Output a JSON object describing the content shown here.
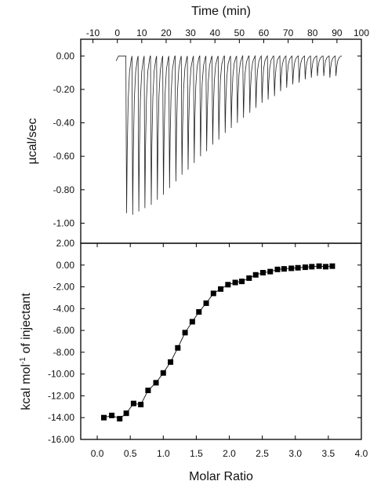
{
  "chart_data": [
    {
      "type": "line",
      "panel": "top",
      "xlabel": "Time (min)",
      "ylabel": "µcal/sec",
      "xlim": [
        -15,
        100
      ],
      "ylim": [
        -1.12,
        0.1
      ],
      "x_ticks": [
        -10,
        0,
        10,
        20,
        30,
        40,
        50,
        60,
        70,
        80,
        90,
        100
      ],
      "y_ticks": [
        0.0,
        -0.2,
        -0.4,
        -0.6,
        -0.8,
        -1.0
      ],
      "x_tick_labels": [
        "-10",
        "0",
        "10",
        "20",
        "30",
        "40",
        "50",
        "60",
        "70",
        "80",
        "90",
        "100"
      ],
      "y_tick_labels": [
        "0.00",
        "-0.20",
        "-0.40",
        "-0.60",
        "-0.80",
        "-1.00"
      ],
      "baseline": 0.0,
      "injection_times": [
        3.5,
        6.0,
        8.5,
        11.0,
        13.6,
        16.1,
        18.6,
        21.1,
        23.7,
        26.2,
        28.7,
        31.2,
        33.8,
        36.3,
        38.8,
        41.3,
        43.9,
        46.4,
        48.9,
        51.4,
        54.0,
        56.5,
        59.0,
        61.5,
        64.1,
        66.6,
        69.1,
        71.6,
        74.2,
        76.7,
        79.2,
        81.7,
        84.3,
        86.8,
        89.3
      ],
      "peak_minima": [
        -0.94,
        -0.95,
        -0.93,
        -0.91,
        -0.89,
        -0.86,
        -0.83,
        -0.79,
        -0.75,
        -0.71,
        -0.68,
        -0.64,
        -0.6,
        -0.57,
        -0.53,
        -0.5,
        -0.46,
        -0.43,
        -0.4,
        -0.37,
        -0.34,
        -0.31,
        -0.28,
        -0.26,
        -0.24,
        -0.21,
        -0.19,
        -0.17,
        -0.16,
        -0.14,
        -0.13,
        -0.12,
        -0.12,
        -0.13,
        -0.12
      ],
      "end_time": 92
    },
    {
      "type": "scatter",
      "panel": "bottom",
      "xlabel": "Molar Ratio",
      "ylabel": "kcal mol-1 of injectant",
      "xlim": [
        -0.25,
        4.0
      ],
      "ylim": [
        -16.0,
        2.0
      ],
      "x_ticks": [
        0.0,
        0.5,
        1.0,
        1.5,
        2.0,
        2.5,
        3.0,
        3.5,
        4.0
      ],
      "y_ticks": [
        2.0,
        0.0,
        -2.0,
        -4.0,
        -6.0,
        -8.0,
        -10.0,
        -12.0,
        -14.0,
        -16.0
      ],
      "x_tick_labels": [
        "0.0",
        "0.5",
        "1.0",
        "1.5",
        "2.0",
        "2.5",
        "3.0",
        "3.5",
        "4.0"
      ],
      "y_tick_labels": [
        "2.00",
        "0.00",
        "-2.00",
        "-4.00",
        "-6.00",
        "-8.00",
        "-10.00",
        "-12.00",
        "-14.00",
        "-16.00"
      ],
      "x": [
        0.1,
        0.22,
        0.34,
        0.44,
        0.55,
        0.66,
        0.77,
        0.89,
        1.0,
        1.11,
        1.22,
        1.33,
        1.44,
        1.54,
        1.65,
        1.76,
        1.87,
        1.98,
        2.09,
        2.19,
        2.3,
        2.4,
        2.51,
        2.62,
        2.73,
        2.83,
        2.94,
        3.04,
        3.15,
        3.25,
        3.36,
        3.46,
        3.56
      ],
      "y": [
        -14.0,
        -13.8,
        -14.1,
        -13.6,
        -12.7,
        -12.8,
        -11.5,
        -10.8,
        -9.9,
        -8.9,
        -7.6,
        -6.2,
        -5.2,
        -4.3,
        -3.5,
        -2.6,
        -2.2,
        -1.8,
        -1.6,
        -1.5,
        -1.2,
        -0.9,
        -0.7,
        -0.6,
        -0.4,
        -0.35,
        -0.3,
        -0.25,
        -0.2,
        -0.15,
        -0.1,
        -0.15,
        -0.1
      ]
    }
  ]
}
